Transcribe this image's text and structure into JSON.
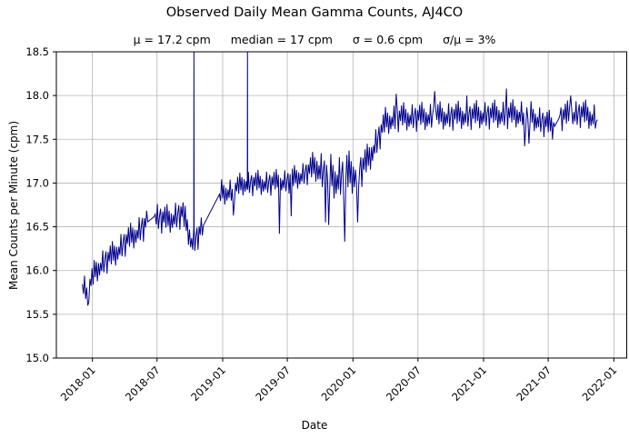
{
  "chart_data": {
    "type": "line",
    "title": "Observed Daily Mean Gamma Counts, AJ4CO",
    "annotations": [
      "μ = 17.2 cpm",
      "median = 17 cpm",
      "σ = 0.6 cpm",
      "σ/μ = 3%"
    ],
    "xlabel": "Date",
    "ylabel": "Mean Counts per Minute (cpm)",
    "grid": true,
    "legend": null,
    "line_color": "#00008b",
    "grid_color": "#b3b3b3",
    "axis_color": "#000000",
    "x_axis": {
      "epoch": "2018-01-01",
      "xlim_days": [
        -101,
        1497
      ],
      "tick_days": [
        0,
        181,
        365,
        546,
        730,
        912,
        1096,
        1277,
        1461
      ],
      "tick_labels": [
        "2018-01",
        "2018-07",
        "2019-01",
        "2019-07",
        "2020-01",
        "2020-07",
        "2021-01",
        "2021-07",
        "2022-01"
      ]
    },
    "y_axis": {
      "ylim": [
        15.0,
        18.5
      ],
      "ticks": [
        15.0,
        15.5,
        16.0,
        16.5,
        17.0,
        17.5,
        18.0,
        18.5
      ],
      "tick_labels": [
        "15.0",
        "15.5",
        "16.0",
        "16.5",
        "17.0",
        "17.5",
        "18.0",
        "18.5"
      ]
    },
    "series": {
      "name": "daily-mean-gamma-counts",
      "d_start": -28,
      "d_end": 1417,
      "step_days": 3,
      "trend": [
        [
          -28,
          15.82
        ],
        [
          -12,
          15.78
        ],
        [
          9,
          16.0
        ],
        [
          31,
          16.1
        ],
        [
          59,
          16.18
        ],
        [
          90,
          16.32
        ],
        [
          120,
          16.42
        ],
        [
          153,
          16.55
        ],
        [
          174,
          16.62
        ],
        [
          212,
          16.58
        ],
        [
          252,
          16.66
        ],
        [
          265,
          16.5
        ],
        [
          280,
          16.32
        ],
        [
          292,
          16.38
        ],
        [
          309,
          16.5
        ],
        [
          357,
          16.88
        ],
        [
          396,
          16.92
        ],
        [
          424,
          17.0
        ],
        [
          485,
          17.0
        ],
        [
          546,
          17.02
        ],
        [
          591,
          17.1
        ],
        [
          627,
          17.2
        ],
        [
          652,
          17.1
        ],
        [
          683,
          17.05
        ],
        [
          713,
          17.1
        ],
        [
          744,
          17.12
        ],
        [
          770,
          17.25
        ],
        [
          799,
          17.5
        ],
        [
          821,
          17.7
        ],
        [
          851,
          17.75
        ],
        [
          943,
          17.76
        ],
        [
          1096,
          17.78
        ],
        [
          1216,
          17.79
        ],
        [
          1294,
          17.64
        ],
        [
          1310,
          17.76
        ],
        [
          1369,
          17.8
        ],
        [
          1409,
          17.75
        ],
        [
          1417,
          17.58
        ]
      ],
      "noise_pattern": [
        0.15,
        -0.5,
        0.85,
        -0.75,
        0.1,
        0.6,
        -1.0,
        0.45,
        -0.25,
        0.8,
        -0.55,
        1.0,
        -0.4,
        0.55,
        -0.9,
        0.3,
        -0.65
      ],
      "noise_amp": [
        [
          -28,
          0.16
        ],
        [
          252,
          0.18
        ],
        [
          396,
          0.15
        ],
        [
          600,
          0.15
        ],
        [
          650,
          0.25
        ],
        [
          710,
          0.28
        ],
        [
          770,
          0.2
        ],
        [
          820,
          0.17
        ],
        [
          1417,
          0.17
        ]
      ],
      "gaps": [
        [
          153,
          174
        ],
        [
          309,
          357
        ],
        [
          1294,
          1310
        ]
      ],
      "spikes_up": [
        [
          284,
          18.6
        ],
        [
          433,
          18.6
        ]
      ],
      "excursions": [
        [
          -14,
          15.6
        ],
        [
          144,
          16.33
        ],
        [
          394,
          16.63
        ],
        [
          525,
          16.42
        ],
        [
          556,
          16.62
        ],
        [
          653,
          16.55
        ],
        [
          663,
          16.52
        ],
        [
          706,
          16.33
        ],
        [
          742,
          16.55
        ],
        [
          851,
          18.02
        ],
        [
          960,
          18.05
        ],
        [
          1050,
          18.0
        ],
        [
          1160,
          18.08
        ],
        [
          1210,
          17.42
        ],
        [
          1223,
          17.45
        ],
        [
          1340,
          18.0
        ]
      ]
    }
  }
}
